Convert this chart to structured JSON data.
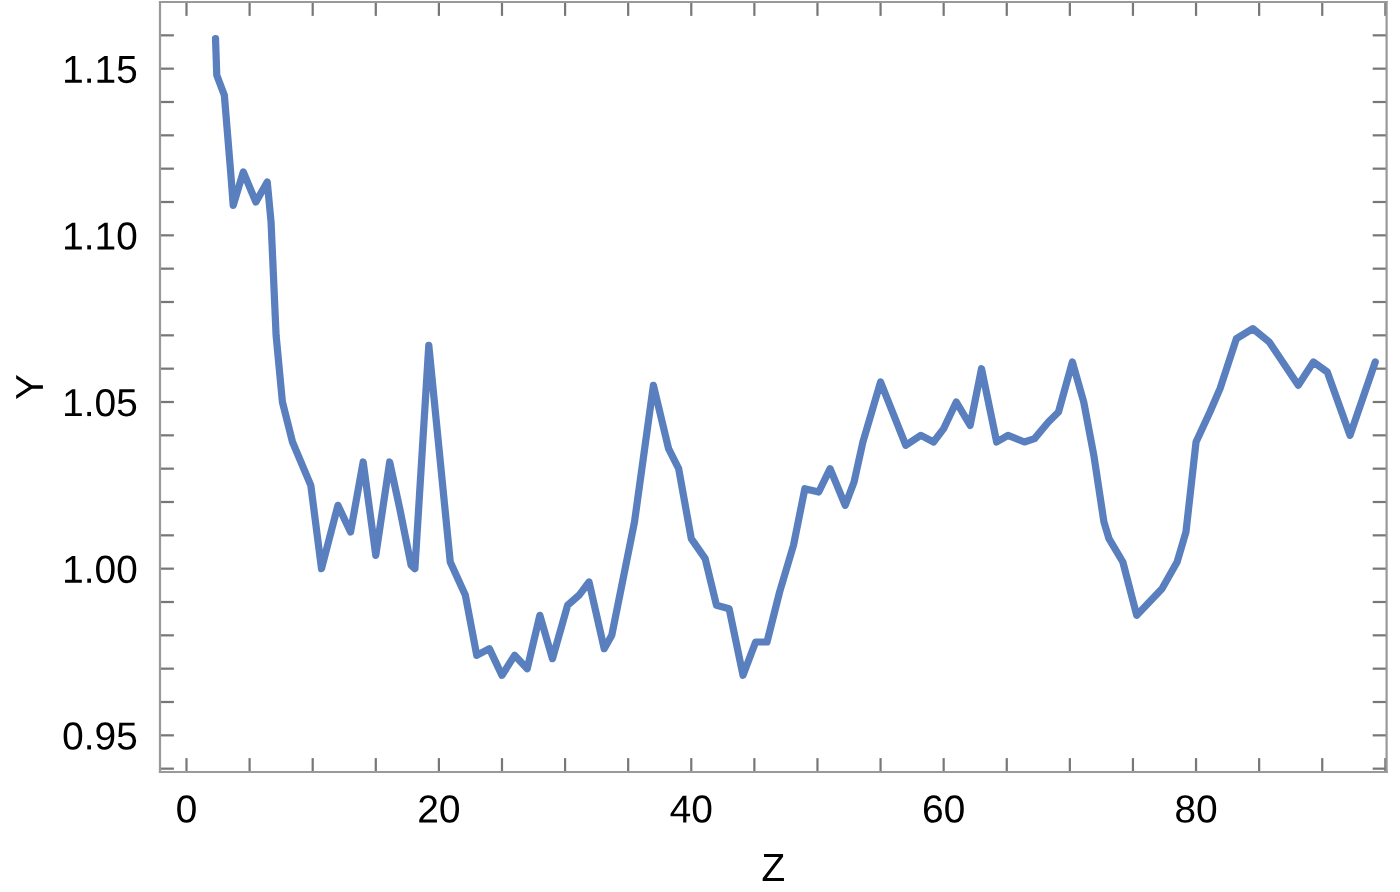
{
  "chart_data": {
    "type": "line",
    "xlabel": "Z",
    "ylabel": "Y",
    "xlim": [
      -2.1,
      95.1
    ],
    "ylim": [
      0.939,
      1.17
    ],
    "xticks": [
      0,
      {
        "value": 5,
        "label": null
      },
      {
        "value": 10,
        "label": null
      },
      {
        "value": 15,
        "label": null
      },
      20,
      {
        "value": 25,
        "label": null
      },
      {
        "value": 30,
        "label": null
      },
      {
        "value": 35,
        "label": null
      },
      40,
      {
        "value": 45,
        "label": null
      },
      {
        "value": 50,
        "label": null
      },
      {
        "value": 55,
        "label": null
      },
      60,
      {
        "value": 65,
        "label": null
      },
      {
        "value": 70,
        "label": null
      },
      {
        "value": 75,
        "label": null
      },
      80,
      {
        "value": 85,
        "label": null
      },
      {
        "value": 90,
        "label": null
      },
      {
        "value": 95,
        "label": null
      }
    ],
    "yticks": [
      {
        "value": 0.94,
        "label": null
      },
      {
        "value": 0.95,
        "label": "0.95"
      },
      {
        "value": 0.96,
        "label": null
      },
      {
        "value": 0.97,
        "label": null
      },
      {
        "value": 0.98,
        "label": null
      },
      {
        "value": 0.99,
        "label": null
      },
      {
        "value": 1.0,
        "label": "1.00"
      },
      {
        "value": 1.01,
        "label": null
      },
      {
        "value": 1.02,
        "label": null
      },
      {
        "value": 1.03,
        "label": null
      },
      {
        "value": 1.04,
        "label": null
      },
      {
        "value": 1.05,
        "label": "1.05"
      },
      {
        "value": 1.06,
        "label": null
      },
      {
        "value": 1.07,
        "label": null
      },
      {
        "value": 1.08,
        "label": null
      },
      {
        "value": 1.09,
        "label": null
      },
      {
        "value": 1.1,
        "label": "1.10"
      },
      {
        "value": 1.11,
        "label": null
      },
      {
        "value": 1.12,
        "label": null
      },
      {
        "value": 1.13,
        "label": null
      },
      {
        "value": 1.14,
        "label": null
      },
      {
        "value": 1.15,
        "label": "1.15"
      },
      {
        "value": 1.16,
        "label": null
      }
    ],
    "grid": false,
    "marker": "none",
    "line_style": "solid",
    "series": [
      {
        "color": "#5a7fbe",
        "x": [
          2.3,
          2.4,
          3.0,
          3.5,
          3.7,
          4.5,
          5.5,
          6.4,
          6.7,
          7.1,
          7.6,
          8.4,
          9.85,
          10.7,
          12.0,
          13.0,
          14.0,
          15.0,
          16.1,
          16.9,
          17.8,
          18.1,
          19.2,
          20.9,
          22.1,
          23.0,
          24.0,
          25.0,
          26.0,
          27.0,
          28.0,
          29.0,
          30.2,
          31.1,
          31.9,
          33.1,
          33.7,
          35.5,
          37.0,
          38.2,
          39.0,
          40.0,
          41.1,
          42.0,
          43.0,
          44.1,
          45.1,
          46.0,
          47.0,
          48.1,
          49.0,
          50.1,
          51.0,
          52.2,
          52.9,
          53.6,
          55.0,
          57.0,
          58.2,
          59.2,
          60.0,
          61.0,
          62.1,
          63.0,
          64.2,
          65.1,
          66.4,
          67.2,
          68.3,
          69.1,
          70.2,
          71.1,
          71.9,
          72.7,
          73.1,
          74.2,
          75.3,
          76.3,
          77.3,
          78.5,
          79.2,
          80.0,
          81.1,
          81.9,
          83.2,
          84.5,
          85.8,
          88.1,
          89.3,
          90.4,
          92.2,
          94.2
        ],
        "values": [
          1.159,
          1.148,
          1.142,
          1.119,
          1.109,
          1.119,
          1.11,
          1.116,
          1.104,
          1.07,
          1.05,
          1.038,
          1.025,
          1.0,
          1.019,
          1.011,
          1.032,
          1.004,
          1.032,
          1.018,
          1.001,
          1.0,
          1.067,
          1.002,
          0.992,
          0.974,
          0.976,
          0.968,
          0.974,
          0.97,
          0.986,
          0.973,
          0.989,
          0.992,
          0.996,
          0.976,
          0.98,
          1.014,
          1.055,
          1.036,
          1.03,
          1.009,
          1.003,
          0.989,
          0.988,
          0.968,
          0.978,
          0.978,
          0.993,
          1.007,
          1.024,
          1.023,
          1.03,
          1.019,
          1.026,
          1.038,
          1.056,
          1.037,
          1.04,
          1.038,
          1.042,
          1.05,
          1.043,
          1.06,
          1.038,
          1.04,
          1.038,
          1.039,
          1.044,
          1.047,
          1.062,
          1.05,
          1.034,
          1.014,
          1.009,
          1.002,
          0.986,
          0.99,
          0.994,
          1.002,
          1.011,
          1.038,
          1.047,
          1.054,
          1.069,
          1.072,
          1.068,
          1.055,
          1.062,
          1.059,
          1.04,
          1.062
        ]
      }
    ]
  }
}
